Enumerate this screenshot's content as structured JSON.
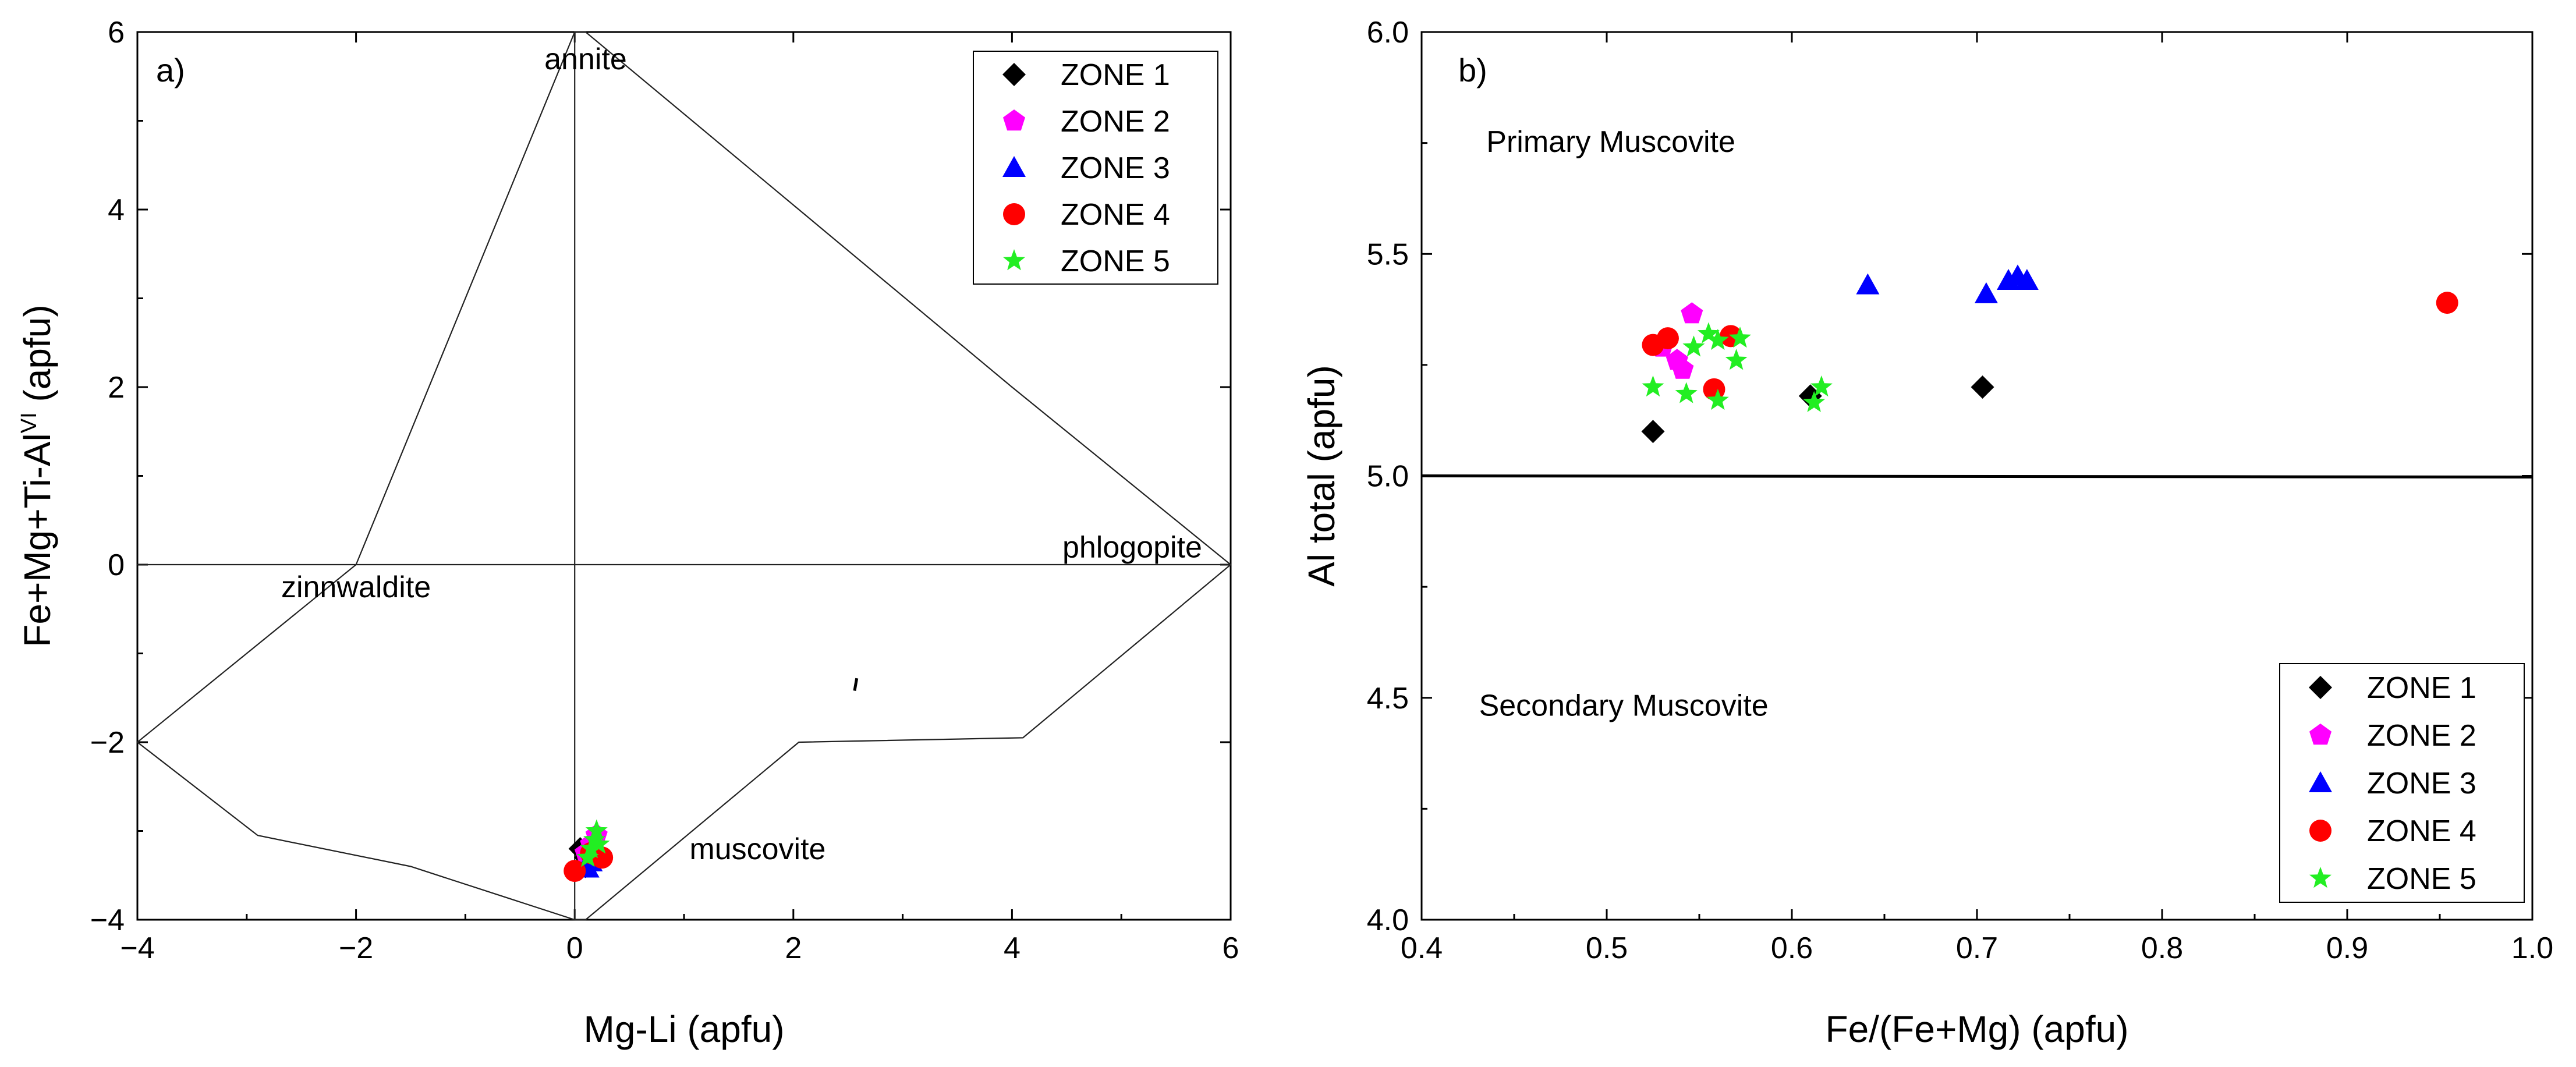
{
  "chart_data": [
    {
      "type": "scatter",
      "panel_label": "a)",
      "xlabel": "Mg-Li (apfu)",
      "ylabel": "Fe+Mg+Ti-Al",
      "ylabel_sup": "VI",
      "ylabel_suffix": " (apfu)",
      "xlim": [
        -4,
        6
      ],
      "ylim": [
        -4,
        6
      ],
      "xticks": [
        -4,
        -2,
        0,
        2,
        4,
        6
      ],
      "xtick_labels": [
        "−4",
        "−2",
        "0",
        "2",
        "4",
        "6"
      ],
      "yticks": [
        -4,
        -2,
        0,
        2,
        4,
        6
      ],
      "ytick_labels": [
        "−4",
        "−2",
        "0",
        "2",
        "4",
        "6"
      ],
      "grid": false,
      "legend_position": "top-right",
      "field_outline": [
        [
          -4,
          -2
        ],
        [
          -2,
          0
        ],
        [
          0,
          6
        ],
        [
          0.1,
          6
        ],
        [
          4,
          2
        ],
        [
          6,
          0
        ],
        [
          4.1,
          -1.95
        ],
        [
          2.05,
          -2
        ],
        [
          0.1,
          -4
        ],
        [
          0,
          -4
        ],
        [
          -1.5,
          -3.4
        ],
        [
          -2.9,
          -3.05
        ],
        [
          -4,
          -2
        ]
      ],
      "reference_lines": [
        {
          "from": [
            -4,
            0
          ],
          "to": [
            6,
            0
          ]
        },
        {
          "from": [
            0,
            -4
          ],
          "to": [
            0,
            6
          ]
        }
      ],
      "end_members": [
        {
          "label": "annite",
          "x": 0.1,
          "y": 5.7
        },
        {
          "label": "zinnwaldite",
          "x": -2,
          "y": -0.25
        },
        {
          "label": "phlogopite",
          "x": 5.1,
          "y": 0.2
        },
        {
          "label": "muscovite",
          "x": 1.05,
          "y": -3.2
        }
      ],
      "series": [
        {
          "name": "ZONE 1",
          "marker": "diamond",
          "color": "#000000",
          "points": [
            [
              0.05,
              -3.2
            ],
            [
              0.1,
              -3.3
            ],
            [
              0.15,
              -3.25
            ],
            [
              0.1,
              -3.4
            ]
          ]
        },
        {
          "name": "ZONE 2",
          "marker": "pentagon",
          "color": "#ff00ff",
          "points": [
            [
              0.15,
              -3.15
            ],
            [
              0.2,
              -3.05
            ],
            [
              0.1,
              -3.25
            ]
          ]
        },
        {
          "name": "ZONE 3",
          "marker": "triangle",
          "color": "#0000ff",
          "points": [
            [
              0.1,
              -3.4
            ],
            [
              0.15,
              -3.35
            ],
            [
              0.12,
              -3.42
            ]
          ]
        },
        {
          "name": "ZONE 4",
          "marker": "circle",
          "color": "#ff0000",
          "points": [
            [
              0.0,
              -3.45
            ],
            [
              0.15,
              -3.25
            ],
            [
              0.25,
              -3.3
            ]
          ]
        },
        {
          "name": "ZONE 5",
          "marker": "star",
          "color": "#22ee22",
          "points": [
            [
              0.2,
              -3.0
            ],
            [
              0.18,
              -3.1
            ],
            [
              0.15,
              -3.2
            ],
            [
              0.22,
              -3.15
            ],
            [
              0.12,
              -3.3
            ]
          ]
        }
      ]
    },
    {
      "type": "scatter",
      "panel_label": "b)",
      "xlabel": "Fe/(Fe+Mg) (apfu)",
      "ylabel": "Al total (apfu)",
      "xlim": [
        0.4,
        1.0
      ],
      "ylim": [
        4.0,
        6.0
      ],
      "xticks": [
        0.4,
        0.5,
        0.6,
        0.7,
        0.8,
        0.9,
        1.0
      ],
      "xtick_labels": [
        "0.4",
        "0.5",
        "0.6",
        "0.7",
        "0.8",
        "0.9",
        "1.0"
      ],
      "yticks": [
        4.0,
        4.5,
        5.0,
        5.5,
        6.0
      ],
      "ytick_labels": [
        "4.0",
        "4.5",
        "5.0",
        "5.5",
        "6.0"
      ],
      "grid": false,
      "legend_position": "bottom-right",
      "threshold_line": {
        "y": 5.0
      },
      "region_labels": [
        {
          "label": "Primary Muscovite",
          "x": 0.435,
          "y": 5.73
        },
        {
          "label": "Secondary Muscovite",
          "x": 0.431,
          "y": 4.46
        }
      ],
      "series": [
        {
          "name": "ZONE 1",
          "marker": "diamond",
          "color": "#000000",
          "points": [
            [
              0.525,
              5.1
            ],
            [
              0.61,
              5.18
            ],
            [
              0.703,
              5.2
            ]
          ]
        },
        {
          "name": "ZONE 2",
          "marker": "pentagon",
          "color": "#ff00ff",
          "points": [
            [
              0.546,
              5.365
            ],
            [
              0.53,
              5.29
            ],
            [
              0.538,
              5.26
            ],
            [
              0.541,
              5.24
            ]
          ]
        },
        {
          "name": "ZONE 3",
          "marker": "triangle",
          "color": "#0000ff",
          "points": [
            [
              0.641,
              5.43
            ],
            [
              0.705,
              5.41
            ],
            [
              0.717,
              5.44
            ],
            [
              0.722,
              5.45
            ],
            [
              0.727,
              5.44
            ]
          ]
        },
        {
          "name": "ZONE 4",
          "marker": "circle",
          "color": "#ff0000",
          "points": [
            [
              0.525,
              5.295
            ],
            [
              0.533,
              5.31
            ],
            [
              0.558,
              5.195
            ],
            [
              0.567,
              5.315
            ],
            [
              0.954,
              5.39
            ]
          ]
        },
        {
          "name": "ZONE 5",
          "marker": "star",
          "color": "#22ee22",
          "points": [
            [
              0.525,
              5.2
            ],
            [
              0.543,
              5.185
            ],
            [
              0.547,
              5.29
            ],
            [
              0.555,
              5.32
            ],
            [
              0.56,
              5.305
            ],
            [
              0.56,
              5.17
            ],
            [
              0.57,
              5.26
            ],
            [
              0.572,
              5.31
            ],
            [
              0.612,
              5.165
            ],
            [
              0.616,
              5.2
            ]
          ]
        }
      ]
    }
  ]
}
